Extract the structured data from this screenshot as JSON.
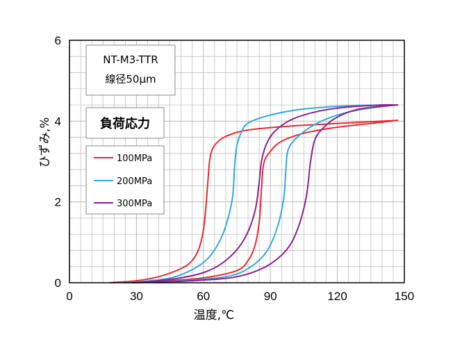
{
  "chart_data": {
    "type": "line",
    "xlabel": "温度,℃",
    "ylabel": "ひずみ,%",
    "xlim": [
      0,
      150
    ],
    "ylim": [
      0,
      6
    ],
    "x_ticks": [
      "0",
      "30",
      "60",
      "90",
      "120",
      "150"
    ],
    "y_ticks": [
      "0",
      "2",
      "4",
      "6"
    ],
    "grid": true,
    "info_box": [
      "NT-M3-TTR",
      "線径50μm"
    ],
    "legend_title": "負荷応力",
    "series": [
      {
        "name": "100MPa",
        "color": "#e8282d",
        "heating": [
          [
            18,
            0
          ],
          [
            30,
            0.05
          ],
          [
            40,
            0.15
          ],
          [
            50,
            0.35
          ],
          [
            55,
            0.55
          ],
          [
            58,
            0.85
          ],
          [
            60,
            1.3
          ],
          [
            61,
            1.8
          ],
          [
            62,
            2.5
          ],
          [
            63,
            3.1
          ],
          [
            65,
            3.4
          ],
          [
            70,
            3.62
          ],
          [
            80,
            3.78
          ],
          [
            100,
            3.88
          ],
          [
            120,
            3.94
          ],
          [
            147,
            4.02
          ]
        ],
        "cooling": [
          [
            18,
            0
          ],
          [
            40,
            0.04
          ],
          [
            60,
            0.12
          ],
          [
            75,
            0.3
          ],
          [
            80,
            0.55
          ],
          [
            83,
            0.9
          ],
          [
            85,
            1.5
          ],
          [
            86,
            2.3
          ],
          [
            87,
            2.95
          ],
          [
            90,
            3.25
          ],
          [
            95,
            3.5
          ],
          [
            105,
            3.7
          ],
          [
            120,
            3.85
          ],
          [
            135,
            3.94
          ],
          [
            147,
            4.02
          ]
        ]
      },
      {
        "name": "200MPa",
        "color": "#2fa9e0",
        "heating": [
          [
            25,
            0
          ],
          [
            40,
            0.07
          ],
          [
            50,
            0.2
          ],
          [
            60,
            0.5
          ],
          [
            66,
            0.9
          ],
          [
            70,
            1.4
          ],
          [
            73,
            2.1
          ],
          [
            74,
            2.9
          ],
          [
            75,
            3.4
          ],
          [
            77,
            3.72
          ],
          [
            80,
            3.95
          ],
          [
            90,
            4.15
          ],
          [
            105,
            4.3
          ],
          [
            125,
            4.38
          ],
          [
            146,
            4.4
          ]
        ],
        "cooling": [
          [
            25,
            0
          ],
          [
            50,
            0.05
          ],
          [
            70,
            0.15
          ],
          [
            80,
            0.35
          ],
          [
            88,
            0.75
          ],
          [
            93,
            1.35
          ],
          [
            96,
            2.1
          ],
          [
            97,
            2.85
          ],
          [
            98,
            3.3
          ],
          [
            102,
            3.6
          ],
          [
            110,
            3.92
          ],
          [
            120,
            4.15
          ],
          [
            132,
            4.3
          ],
          [
            146,
            4.4
          ]
        ]
      },
      {
        "name": "300MPa",
        "color": "#8b1f8e",
        "heating": [
          [
            28,
            0
          ],
          [
            45,
            0.08
          ],
          [
            60,
            0.25
          ],
          [
            70,
            0.55
          ],
          [
            78,
            1.05
          ],
          [
            83,
            1.75
          ],
          [
            85,
            2.5
          ],
          [
            86,
            3.0
          ],
          [
            88,
            3.4
          ],
          [
            92,
            3.75
          ],
          [
            100,
            4.05
          ],
          [
            112,
            4.25
          ],
          [
            125,
            4.35
          ],
          [
            140,
            4.4
          ],
          [
            147,
            4.4
          ]
        ],
        "cooling": [
          [
            28,
            0
          ],
          [
            55,
            0.05
          ],
          [
            75,
            0.15
          ],
          [
            88,
            0.4
          ],
          [
            97,
            0.8
          ],
          [
            102,
            1.3
          ],
          [
            106,
            2.1
          ],
          [
            108,
            3.0
          ],
          [
            110,
            3.55
          ],
          [
            114,
            3.85
          ],
          [
            120,
            4.1
          ],
          [
            130,
            4.3
          ],
          [
            147,
            4.4
          ]
        ]
      }
    ]
  }
}
